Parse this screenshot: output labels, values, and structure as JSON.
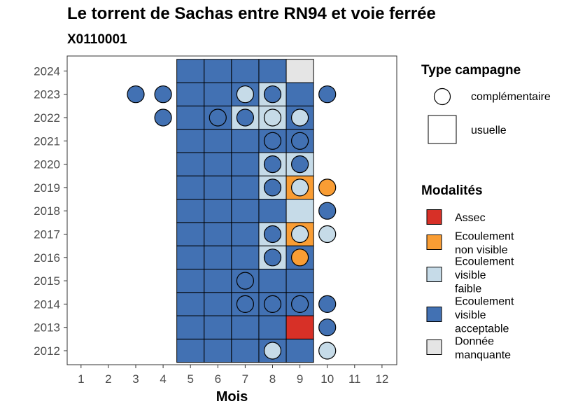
{
  "title": "Le torrent de Sachas entre RN94 et voie ferrée",
  "subtitle": "X0110001",
  "chart_data": {
    "type": "heatmap",
    "xlabel": "Mois",
    "ylabel": "",
    "x_ticks": [
      1,
      2,
      3,
      4,
      5,
      6,
      7,
      8,
      9,
      10,
      11,
      12
    ],
    "y_ticks": [
      2012,
      2013,
      2014,
      2015,
      2016,
      2017,
      2018,
      2019,
      2020,
      2021,
      2022,
      2023,
      2024
    ],
    "legends": [
      {
        "title": "Type campagne",
        "entries": [
          {
            "key": "complementaire",
            "label": "complémentaire",
            "shape": "circle"
          },
          {
            "key": "usuelle",
            "label": "usuelle",
            "shape": "square"
          }
        ]
      },
      {
        "title": "Modalités",
        "entries": [
          {
            "key": "assec",
            "label_lines": [
              "Assec"
            ],
            "color": "#d73027"
          },
          {
            "key": "nonvisible",
            "label_lines": [
              "Ecoulement",
              "non visible"
            ],
            "color": "#f99d34"
          },
          {
            "key": "faible",
            "label_lines": [
              "Ecoulement",
              "visible",
              "faible"
            ],
            "color": "#c6dbe8"
          },
          {
            "key": "acceptable",
            "label_lines": [
              "Ecoulement",
              "visible",
              "acceptable"
            ],
            "color": "#4271b3"
          },
          {
            "key": "manquante",
            "label_lines": [
              "Donnée",
              "manquante"
            ],
            "color": "#e5e5e5"
          }
        ]
      }
    ],
    "usual_campaigns": {
      "2024": {
        "5": "acceptable",
        "6": "acceptable",
        "7": "acceptable",
        "8": "acceptable",
        "9": "manquante"
      },
      "2023": {
        "5": "acceptable",
        "6": "acceptable",
        "7": "acceptable",
        "8": "faible",
        "9": "acceptable"
      },
      "2022": {
        "5": "acceptable",
        "6": "acceptable",
        "7": "faible",
        "8": "faible",
        "9": "acceptable"
      },
      "2021": {
        "5": "acceptable",
        "6": "acceptable",
        "7": "acceptable",
        "8": "acceptable",
        "9": "acceptable"
      },
      "2020": {
        "5": "acceptable",
        "6": "acceptable",
        "7": "acceptable",
        "8": "faible",
        "9": "faible"
      },
      "2019": {
        "5": "acceptable",
        "6": "acceptable",
        "7": "acceptable",
        "8": "faible",
        "9": "nonvisible"
      },
      "2018": {
        "5": "acceptable",
        "6": "acceptable",
        "7": "acceptable",
        "8": "acceptable",
        "9": "faible"
      },
      "2017": {
        "5": "acceptable",
        "6": "acceptable",
        "7": "acceptable",
        "8": "faible",
        "9": "nonvisible"
      },
      "2016": {
        "5": "acceptable",
        "6": "acceptable",
        "7": "acceptable",
        "8": "faible",
        "9": "acceptable"
      },
      "2015": {
        "5": "acceptable",
        "6": "acceptable",
        "7": "acceptable",
        "8": "acceptable",
        "9": "acceptable"
      },
      "2014": {
        "5": "acceptable",
        "6": "acceptable",
        "7": "acceptable",
        "8": "acceptable",
        "9": "acceptable"
      },
      "2013": {
        "5": "acceptable",
        "6": "acceptable",
        "7": "acceptable",
        "8": "acceptable",
        "9": "assec"
      },
      "2012": {
        "5": "acceptable",
        "6": "acceptable",
        "7": "acceptable",
        "8": "acceptable",
        "9": "acceptable"
      }
    },
    "complementary_campaigns": [
      {
        "year": 2023,
        "month": 3,
        "modality": "acceptable"
      },
      {
        "year": 2023,
        "month": 4,
        "modality": "acceptable"
      },
      {
        "year": 2023,
        "month": 7,
        "modality": "faible"
      },
      {
        "year": 2023,
        "month": 8,
        "modality": "acceptable"
      },
      {
        "year": 2023,
        "month": 10,
        "modality": "acceptable"
      },
      {
        "year": 2022,
        "month": 4,
        "modality": "acceptable"
      },
      {
        "year": 2022,
        "month": 6,
        "modality": "acceptable"
      },
      {
        "year": 2022,
        "month": 7,
        "modality": "acceptable"
      },
      {
        "year": 2022,
        "month": 8,
        "modality": "faible"
      },
      {
        "year": 2022,
        "month": 9,
        "modality": "faible"
      },
      {
        "year": 2021,
        "month": 8,
        "modality": "acceptable"
      },
      {
        "year": 2021,
        "month": 9,
        "modality": "acceptable"
      },
      {
        "year": 2020,
        "month": 8,
        "modality": "acceptable"
      },
      {
        "year": 2020,
        "month": 9,
        "modality": "acceptable"
      },
      {
        "year": 2019,
        "month": 8,
        "modality": "acceptable"
      },
      {
        "year": 2019,
        "month": 9,
        "modality": "faible"
      },
      {
        "year": 2019,
        "month": 10,
        "modality": "nonvisible"
      },
      {
        "year": 2018,
        "month": 10,
        "modality": "acceptable"
      },
      {
        "year": 2017,
        "month": 8,
        "modality": "acceptable"
      },
      {
        "year": 2017,
        "month": 9,
        "modality": "faible"
      },
      {
        "year": 2017,
        "month": 10,
        "modality": "faible"
      },
      {
        "year": 2016,
        "month": 8,
        "modality": "acceptable"
      },
      {
        "year": 2016,
        "month": 9,
        "modality": "nonvisible"
      },
      {
        "year": 2015,
        "month": 7,
        "modality": "acceptable"
      },
      {
        "year": 2014,
        "month": 7,
        "modality": "acceptable"
      },
      {
        "year": 2014,
        "month": 8,
        "modality": "acceptable"
      },
      {
        "year": 2014,
        "month": 9,
        "modality": "acceptable"
      },
      {
        "year": 2014,
        "month": 10,
        "modality": "acceptable"
      },
      {
        "year": 2013,
        "month": 10,
        "modality": "acceptable"
      },
      {
        "year": 2012,
        "month": 8,
        "modality": "faible"
      },
      {
        "year": 2012,
        "month": 10,
        "modality": "faible"
      }
    ]
  }
}
